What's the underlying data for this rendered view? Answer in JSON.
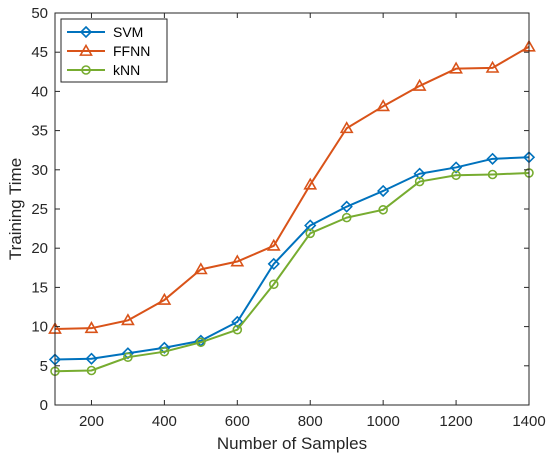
{
  "chart_data": {
    "type": "line",
    "title": "",
    "xlabel": "Number of Samples",
    "ylabel": "Training Time",
    "xlim": [
      100,
      1400
    ],
    "ylim": [
      0,
      50
    ],
    "x": [
      100,
      200,
      300,
      400,
      500,
      600,
      700,
      800,
      900,
      1000,
      1100,
      1200,
      1300,
      1400
    ],
    "xticks": [
      200,
      400,
      600,
      800,
      1000,
      1200,
      1400
    ],
    "yticks": [
      0,
      5,
      10,
      15,
      20,
      25,
      30,
      35,
      40,
      45,
      50
    ],
    "grid": false,
    "legend_position": "top-left",
    "series": [
      {
        "name": "SVM",
        "color": "#0072BD",
        "marker": "diamond",
        "values": [
          5.8,
          5.9,
          6.6,
          7.3,
          8.2,
          10.6,
          18.0,
          22.9,
          25.3,
          27.3,
          29.5,
          30.3,
          31.4,
          31.6
        ]
      },
      {
        "name": "FFNN",
        "color": "#D95319",
        "marker": "triangle",
        "values": [
          9.7,
          9.8,
          10.8,
          13.4,
          17.3,
          18.3,
          20.3,
          28.1,
          35.3,
          38.1,
          40.7,
          42.9,
          43.0,
          45.7
        ]
      },
      {
        "name": "kNN",
        "color": "#77AC30",
        "marker": "circle",
        "values": [
          4.3,
          4.4,
          6.1,
          6.8,
          8.0,
          9.6,
          15.4,
          21.9,
          23.9,
          24.9,
          28.5,
          29.3,
          29.4,
          29.6
        ]
      }
    ]
  }
}
